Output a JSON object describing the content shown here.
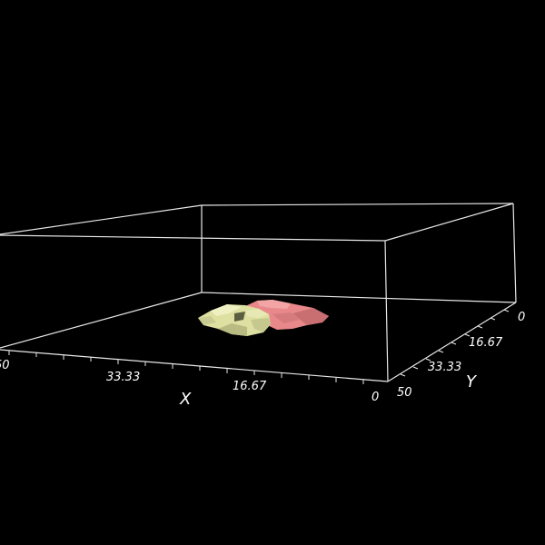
{
  "scene": {
    "background": "#000000",
    "box_color": "#e8e8e8",
    "axes": {
      "x": {
        "title": "X",
        "ticks": [
          "50",
          "33.33",
          "16.67",
          "0"
        ]
      },
      "y": {
        "title": "Y",
        "ticks": [
          "0",
          "16.67",
          "33.33",
          "50"
        ]
      }
    },
    "surfaces": [
      {
        "name": "pink-blob",
        "color": "#e8888a"
      },
      {
        "name": "yellow-blob",
        "color": "#dde0a0"
      }
    ]
  }
}
